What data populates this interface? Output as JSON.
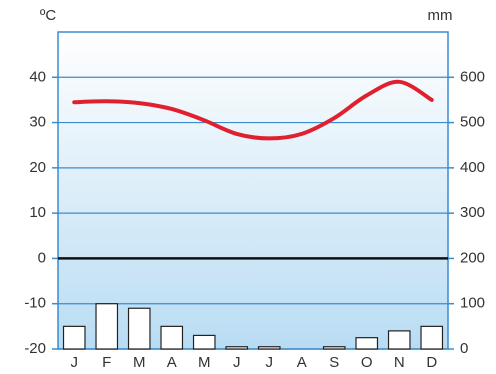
{
  "chart_data": {
    "type": "climograph",
    "y_label": "ºC",
    "y2_label": "mm",
    "categories": [
      "J",
      "F",
      "M",
      "A",
      "M",
      "J",
      "J",
      "A",
      "S",
      "O",
      "N",
      "D"
    ],
    "series": [
      {
        "type": "bar",
        "axis": "y2",
        "color": "#ffffff",
        "values": [
          50,
          100,
          90,
          50,
          30,
          5,
          5,
          0,
          5,
          25,
          40,
          50
        ]
      },
      {
        "type": "line",
        "axis": "y",
        "color": "#e0202e",
        "values": [
          34.5,
          34.7,
          34.3,
          33,
          30.5,
          27.5,
          26.5,
          27.5,
          31,
          36,
          39,
          35
        ]
      }
    ],
    "ylim": [
      -20,
      50
    ],
    "yticks": [
      -20,
      -10,
      0,
      10,
      20,
      30,
      40
    ],
    "y2lim": [
      0,
      700
    ],
    "y2ticks": [
      0,
      100,
      200,
      300,
      400,
      500,
      600
    ],
    "grid": true
  }
}
